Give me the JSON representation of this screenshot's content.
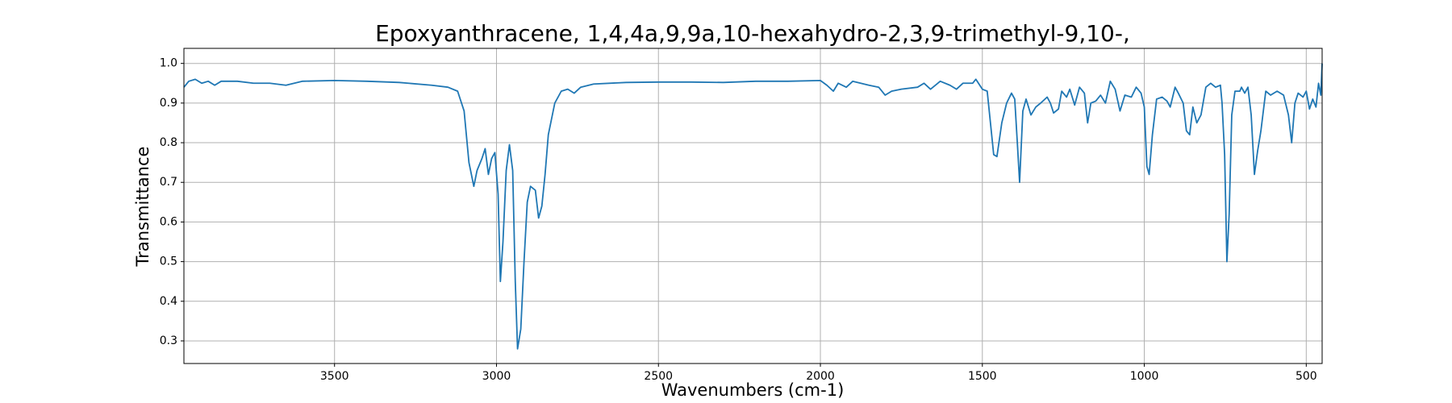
{
  "chart_data": {
    "type": "line",
    "title": "Epoxyanthracene, 1,4,4a,9,9a,10-hexahydro-2,3,9-trimethyl-9,10-,",
    "x_label": "Wavenumbers (cm-1)",
    "y_label": "Transmittance",
    "color": "#1f77b4",
    "grid": true,
    "xlim": [
      3965,
      451
    ],
    "ylim": [
      0.243,
      1.038
    ],
    "xticks": [
      3500,
      3000,
      2500,
      2000,
      1500,
      1000,
      500
    ],
    "yticks": [
      0.3,
      0.4,
      0.5,
      0.6,
      0.7,
      0.8,
      0.9,
      {
        "value": 1,
        "label": "1.0"
      }
    ],
    "x": [
      3965,
      3950,
      3930,
      3910,
      3890,
      3870,
      3850,
      3800,
      3750,
      3700,
      3650,
      3600,
      3500,
      3400,
      3300,
      3200,
      3150,
      3120,
      3100,
      3085,
      3070,
      3060,
      3045,
      3035,
      3025,
      3015,
      3005,
      2995,
      2988,
      2980,
      2970,
      2960,
      2950,
      2942,
      2935,
      2925,
      2915,
      2905,
      2895,
      2880,
      2870,
      2860,
      2850,
      2840,
      2820,
      2800,
      2780,
      2760,
      2740,
      2700,
      2600,
      2500,
      2400,
      2300,
      2200,
      2100,
      2000,
      1980,
      1960,
      1945,
      1920,
      1900,
      1850,
      1820,
      1800,
      1780,
      1750,
      1700,
      1680,
      1660,
      1630,
      1600,
      1580,
      1560,
      1530,
      1520,
      1500,
      1485,
      1475,
      1465,
      1455,
      1440,
      1425,
      1410,
      1400,
      1392,
      1385,
      1375,
      1365,
      1350,
      1335,
      1320,
      1300,
      1290,
      1280,
      1265,
      1255,
      1240,
      1230,
      1215,
      1200,
      1185,
      1175,
      1165,
      1150,
      1135,
      1120,
      1105,
      1090,
      1075,
      1060,
      1040,
      1025,
      1010,
      1000,
      992,
      985,
      975,
      962,
      945,
      930,
      920,
      905,
      895,
      880,
      870,
      860,
      850,
      838,
      825,
      810,
      795,
      780,
      765,
      760,
      752,
      745,
      738,
      730,
      720,
      705,
      700,
      690,
      680,
      670,
      660,
      650,
      640,
      625,
      610,
      590,
      570,
      555,
      545,
      535,
      525,
      510,
      500,
      490,
      480,
      470,
      462,
      455,
      451
    ],
    "values": [
      0.94,
      0.955,
      0.96,
      0.95,
      0.955,
      0.945,
      0.955,
      0.955,
      0.95,
      0.95,
      0.945,
      0.955,
      0.957,
      0.955,
      0.952,
      0.945,
      0.94,
      0.93,
      0.88,
      0.75,
      0.69,
      0.73,
      0.76,
      0.785,
      0.72,
      0.76,
      0.775,
      0.67,
      0.45,
      0.55,
      0.73,
      0.795,
      0.73,
      0.45,
      0.28,
      0.33,
      0.5,
      0.65,
      0.69,
      0.68,
      0.61,
      0.64,
      0.72,
      0.82,
      0.9,
      0.93,
      0.935,
      0.925,
      0.94,
      0.948,
      0.952,
      0.953,
      0.953,
      0.952,
      0.955,
      0.955,
      0.957,
      0.945,
      0.93,
      0.95,
      0.94,
      0.955,
      0.945,
      0.94,
      0.92,
      0.93,
      0.935,
      0.94,
      0.95,
      0.935,
      0.955,
      0.945,
      0.935,
      0.95,
      0.95,
      0.96,
      0.935,
      0.93,
      0.85,
      0.77,
      0.765,
      0.85,
      0.9,
      0.925,
      0.91,
      0.8,
      0.7,
      0.88,
      0.91,
      0.87,
      0.89,
      0.9,
      0.915,
      0.9,
      0.875,
      0.885,
      0.93,
      0.915,
      0.935,
      0.895,
      0.94,
      0.925,
      0.85,
      0.9,
      0.905,
      0.92,
      0.9,
      0.955,
      0.935,
      0.88,
      0.92,
      0.915,
      0.94,
      0.925,
      0.89,
      0.74,
      0.72,
      0.82,
      0.91,
      0.915,
      0.905,
      0.89,
      0.94,
      0.925,
      0.9,
      0.83,
      0.82,
      0.89,
      0.85,
      0.87,
      0.94,
      0.95,
      0.94,
      0.945,
      0.9,
      0.77,
      0.5,
      0.62,
      0.87,
      0.93,
      0.93,
      0.94,
      0.925,
      0.94,
      0.87,
      0.72,
      0.78,
      0.83,
      0.93,
      0.92,
      0.93,
      0.92,
      0.87,
      0.8,
      0.9,
      0.925,
      0.915,
      0.93,
      0.885,
      0.91,
      0.89,
      0.95,
      0.92,
      1.0
    ]
  }
}
